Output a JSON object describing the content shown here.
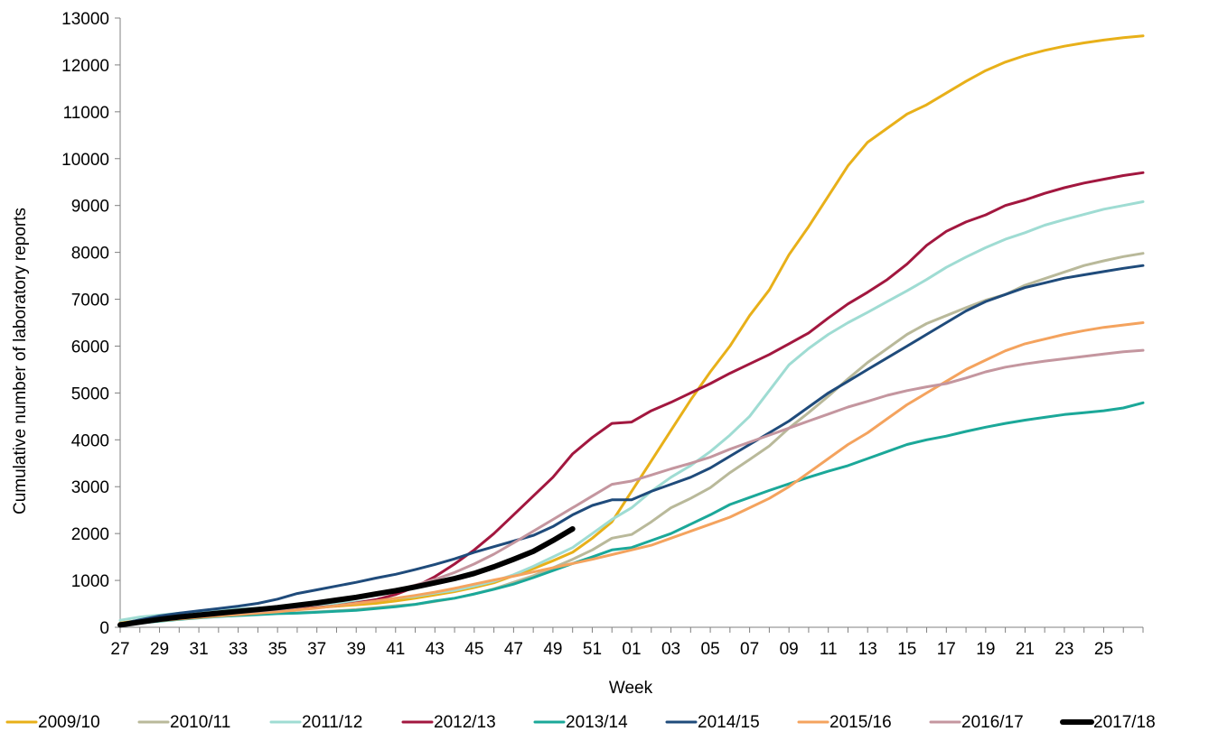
{
  "chart_data": {
    "type": "line",
    "xlabel": "Week",
    "ylabel": "Cumulative number of laboratory reports",
    "ylim": [
      0,
      13000
    ],
    "yticks": [
      0,
      1000,
      2000,
      3000,
      4000,
      5000,
      6000,
      7000,
      8000,
      9000,
      10000,
      11000,
      12000,
      13000
    ],
    "x": [
      "27",
      "28",
      "29",
      "30",
      "31",
      "32",
      "33",
      "34",
      "35",
      "36",
      "37",
      "38",
      "39",
      "40",
      "41",
      "42",
      "43",
      "44",
      "45",
      "46",
      "47",
      "48",
      "49",
      "50",
      "51",
      "52",
      "01",
      "02",
      "03",
      "04",
      "05",
      "06",
      "07",
      "08",
      "09",
      "10",
      "11",
      "12",
      "13",
      "14",
      "15",
      "16",
      "17",
      "18",
      "19",
      "20",
      "21",
      "22",
      "23",
      "24",
      "25",
      "26",
      "27"
    ],
    "xtick_labels": [
      "27",
      "29",
      "31",
      "33",
      "35",
      "37",
      "39",
      "41",
      "43",
      "45",
      "47",
      "49",
      "51",
      "01",
      "03",
      "05",
      "07",
      "09",
      "11",
      "13",
      "15",
      "17",
      "19",
      "21",
      "23",
      "25"
    ],
    "grid": false,
    "legend_position": "bottom",
    "series": [
      {
        "name": "2009/10",
        "color": "#e8b019",
        "width": 3,
        "values": [
          90,
          150,
          190,
          230,
          260,
          290,
          310,
          340,
          360,
          390,
          420,
          450,
          480,
          510,
          560,
          620,
          690,
          760,
          850,
          950,
          1100,
          1250,
          1420,
          1600,
          1900,
          2250,
          2900,
          3550,
          4200,
          4850,
          5450,
          6000,
          6650,
          7200,
          7950,
          8550,
          9200,
          9850,
          10350,
          10650,
          10950,
          11150,
          11400,
          11650,
          11880,
          12060,
          12200,
          12310,
          12400,
          12470,
          12530,
          12580,
          12620
        ]
      },
      {
        "name": "2010/11",
        "color": "#b9b99a",
        "width": 3,
        "values": [
          60,
          110,
          150,
          180,
          210,
          240,
          260,
          280,
          300,
          310,
          330,
          350,
          380,
          420,
          460,
          490,
          550,
          620,
          710,
          820,
          960,
          1100,
          1270,
          1450,
          1650,
          1900,
          1980,
          2250,
          2550,
          2750,
          2980,
          3300,
          3580,
          3870,
          4250,
          4580,
          4930,
          5300,
          5650,
          5950,
          6250,
          6480,
          6650,
          6820,
          6980,
          7100,
          7300,
          7440,
          7580,
          7720,
          7820,
          7910,
          7980
        ]
      },
      {
        "name": "2011/12",
        "color": "#9fdcd3",
        "width": 3,
        "values": [
          150,
          220,
          260,
          300,
          330,
          360,
          390,
          410,
          440,
          460,
          480,
          510,
          540,
          580,
          620,
          660,
          730,
          790,
          880,
          980,
          1120,
          1300,
          1500,
          1700,
          2000,
          2300,
          2550,
          2900,
          3200,
          3450,
          3750,
          4100,
          4500,
          5050,
          5600,
          5950,
          6250,
          6500,
          6720,
          6950,
          7180,
          7420,
          7680,
          7900,
          8100,
          8280,
          8420,
          8580,
          8700,
          8810,
          8920,
          9000,
          9080
        ]
      },
      {
        "name": "2012/13",
        "color": "#a2173f",
        "width": 3,
        "values": [
          50,
          110,
          160,
          200,
          240,
          270,
          300,
          320,
          350,
          380,
          420,
          460,
          520,
          590,
          700,
          860,
          1080,
          1350,
          1650,
          2000,
          2400,
          2800,
          3200,
          3700,
          4050,
          4350,
          4380,
          4620,
          4800,
          5000,
          5200,
          5420,
          5620,
          5820,
          6050,
          6280,
          6600,
          6900,
          7150,
          7420,
          7750,
          8150,
          8450,
          8650,
          8800,
          9000,
          9120,
          9260,
          9380,
          9480,
          9560,
          9640,
          9700
        ]
      },
      {
        "name": "2013/14",
        "color": "#1ba899",
        "width": 3,
        "values": [
          40,
          90,
          130,
          170,
          200,
          230,
          250,
          270,
          290,
          300,
          320,
          340,
          360,
          400,
          440,
          490,
          560,
          620,
          710,
          810,
          920,
          1060,
          1210,
          1360,
          1500,
          1650,
          1700,
          1850,
          2000,
          2200,
          2400,
          2620,
          2770,
          2920,
          3060,
          3200,
          3330,
          3450,
          3600,
          3750,
          3900,
          4000,
          4080,
          4180,
          4270,
          4350,
          4420,
          4480,
          4540,
          4580,
          4620,
          4680,
          4790
        ]
      },
      {
        "name": "2014/15",
        "color": "#1f4b7b",
        "width": 3,
        "values": [
          70,
          160,
          240,
          300,
          350,
          400,
          450,
          510,
          600,
          720,
          800,
          880,
          960,
          1050,
          1130,
          1230,
          1340,
          1460,
          1600,
          1720,
          1840,
          1960,
          2150,
          2400,
          2600,
          2720,
          2720,
          2900,
          3050,
          3200,
          3400,
          3650,
          3900,
          4150,
          4400,
          4700,
          5000,
          5250,
          5500,
          5750,
          6000,
          6250,
          6500,
          6750,
          6950,
          7100,
          7250,
          7350,
          7450,
          7520,
          7590,
          7660,
          7720
        ]
      },
      {
        "name": "2015/16",
        "color": "#f4a35e",
        "width": 3,
        "values": [
          50,
          100,
          140,
          180,
          210,
          240,
          270,
          300,
          330,
          370,
          410,
          460,
          510,
          560,
          620,
          680,
          750,
          830,
          920,
          1010,
          1090,
          1180,
          1270,
          1360,
          1450,
          1550,
          1650,
          1750,
          1900,
          2050,
          2200,
          2350,
          2550,
          2750,
          3000,
          3300,
          3600,
          3900,
          4150,
          4450,
          4750,
          5000,
          5250,
          5500,
          5700,
          5900,
          6050,
          6150,
          6250,
          6330,
          6400,
          6450,
          6500
        ]
      },
      {
        "name": "2016/17",
        "color": "#c4969f",
        "width": 3,
        "values": [
          60,
          120,
          170,
          210,
          250,
          280,
          310,
          340,
          380,
          430,
          490,
          550,
          620,
          700,
          790,
          900,
          1020,
          1170,
          1350,
          1560,
          1800,
          2050,
          2300,
          2550,
          2800,
          3050,
          3120,
          3250,
          3380,
          3500,
          3630,
          3800,
          3950,
          4100,
          4250,
          4400,
          4550,
          4700,
          4820,
          4950,
          5050,
          5130,
          5200,
          5320,
          5450,
          5550,
          5620,
          5680,
          5730,
          5780,
          5830,
          5880,
          5910
        ]
      },
      {
        "name": "2017/18",
        "color": "#000000",
        "width": 6,
        "values": [
          50,
          110,
          170,
          220,
          260,
          300,
          340,
          380,
          420,
          470,
          520,
          580,
          640,
          710,
          780,
          860,
          950,
          1040,
          1150,
          1290,
          1450,
          1620,
          1850,
          2100,
          null,
          null,
          null,
          null,
          null,
          null,
          null,
          null,
          null,
          null,
          null,
          null,
          null,
          null,
          null,
          null,
          null,
          null,
          null,
          null,
          null,
          null,
          null,
          null,
          null,
          null,
          null,
          null,
          null
        ]
      }
    ]
  }
}
